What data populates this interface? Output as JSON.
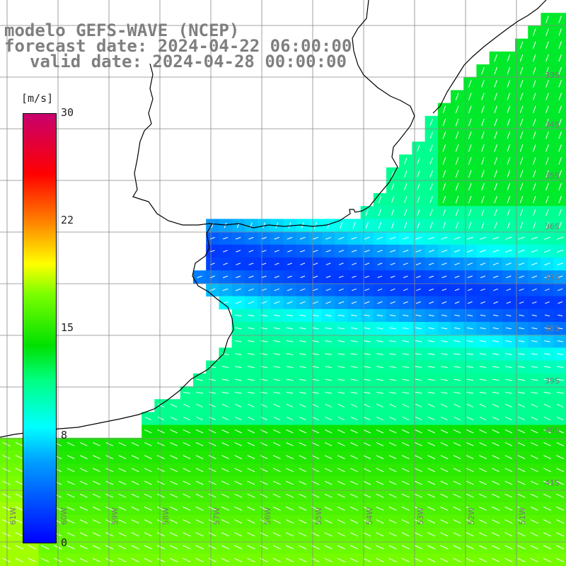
{
  "title": {
    "line1": "modelo GEFS-WAVE (NCEP)",
    "line2": "forecast date: 2024-04-22 06:00:00",
    "line3": "valid date: 2024-04-28 00:00:00"
  },
  "colorbar": {
    "unit": "[m/s]",
    "ticks": [
      "30",
      "22",
      "15",
      "8",
      "0"
    ],
    "stops": [
      "#0000ff",
      "#00a0ff",
      "#00ffff",
      "#00ff80",
      "#00e000",
      "#7cff00",
      "#ffff00",
      "#ff8000",
      "#ff0000",
      "#c8006e"
    ]
  },
  "lat_labels": [
    "33S",
    "34S",
    "35S",
    "36S",
    "37S",
    "38S",
    "39S",
    "40S",
    "41S"
  ],
  "lon_labels": [
    "61W",
    "60W",
    "59W",
    "58W",
    "57W",
    "56W",
    "55W",
    "54W",
    "53W",
    "52W",
    "51W"
  ],
  "colors": {
    "coastline": "#000000",
    "grid": "#888888",
    "arrows": "#ffffff",
    "land": "#ffffff"
  }
}
